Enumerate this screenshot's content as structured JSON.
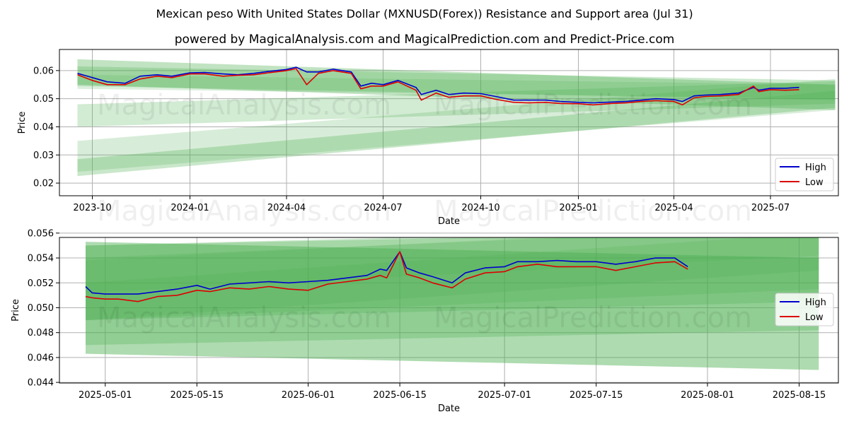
{
  "title": "Mexican peso With United States Dollar (MXNUSD(Forex)) Resistance and Support area (Jul 31)",
  "subtitle": "powered by MagicalAnalysis.com and MagicalPrediction.com and Predict-Price.com",
  "watermarks": [
    "MagicalAnalysis.com",
    "MagicalPrediction.com"
  ],
  "colors": {
    "high": "#0000cc",
    "low": "#dd0000",
    "band": "#4caf50",
    "grid": "#b0b0b0"
  },
  "chart_data": [
    {
      "type": "line",
      "xlabel": "Date",
      "ylabel": "Price",
      "xlim": [
        "2023-08-31",
        "2025-09-03"
      ],
      "ylim": [
        0.0155,
        0.0675
      ],
      "x_ticks": [
        "2023-10",
        "2024-01",
        "2024-04",
        "2024-07",
        "2024-10",
        "2025-01",
        "2025-04",
        "2025-07"
      ],
      "x_tick_dates": [
        "2023-10-01",
        "2024-01-01",
        "2024-04-01",
        "2024-07-01",
        "2024-10-01",
        "2025-01-01",
        "2025-04-01",
        "2025-07-01"
      ],
      "y_ticks": [
        0.02,
        0.03,
        0.04,
        0.05,
        0.06
      ],
      "grid": true,
      "legend": "bottom-right",
      "bands_x": [
        "2023-09-17",
        "2025-08-31"
      ],
      "bands": [
        {
          "y": [
            0.0295,
            0.0515
          ],
          "hw": 0.0055,
          "opacity": 0.22
        },
        {
          "y": [
            0.0255,
            0.0498
          ],
          "hw": 0.003,
          "opacity": 0.3
        },
        {
          "y": [
            0.044,
            0.0522
          ],
          "hw": 0.004,
          "opacity": 0.25
        },
        {
          "y": [
            0.0595,
            0.0505
          ],
          "hw": 0.0045,
          "opacity": 0.35
        },
        {
          "y": [
            0.058,
            0.053
          ],
          "hw": 0.0035,
          "opacity": 0.28
        },
        {
          "y": [
            0.056,
            0.0525
          ],
          "hw": 0.0025,
          "opacity": 0.2
        }
      ],
      "series": [
        {
          "name": "High",
          "x": [
            "2023-09-17",
            "2023-10-01",
            "2023-10-15",
            "2023-11-01",
            "2023-11-15",
            "2023-12-01",
            "2023-12-15",
            "2024-01-01",
            "2024-01-15",
            "2024-02-01",
            "2024-02-15",
            "2024-03-01",
            "2024-03-15",
            "2024-04-01",
            "2024-04-10",
            "2024-04-20",
            "2024-05-01",
            "2024-05-15",
            "2024-06-01",
            "2024-06-10",
            "2024-06-20",
            "2024-07-01",
            "2024-07-15",
            "2024-08-01",
            "2024-08-06",
            "2024-08-20",
            "2024-09-01",
            "2024-09-15",
            "2024-10-01",
            "2024-10-15",
            "2024-11-01",
            "2024-11-15",
            "2024-12-01",
            "2024-12-15",
            "2025-01-01",
            "2025-01-15",
            "2025-02-01",
            "2025-02-15",
            "2025-03-01",
            "2025-03-15",
            "2025-04-01",
            "2025-04-09",
            "2025-04-20",
            "2025-05-01",
            "2025-05-15",
            "2025-06-01",
            "2025-06-15",
            "2025-06-20",
            "2025-07-01",
            "2025-07-15",
            "2025-07-28"
          ],
          "values": [
            0.059,
            0.0575,
            0.056,
            0.0555,
            0.058,
            0.0585,
            0.058,
            0.0592,
            0.0593,
            0.0588,
            0.0585,
            0.059,
            0.0597,
            0.0604,
            0.0612,
            0.0595,
            0.0595,
            0.0605,
            0.0595,
            0.0545,
            0.0555,
            0.055,
            0.0565,
            0.054,
            0.0515,
            0.053,
            0.0515,
            0.052,
            0.0518,
            0.0508,
            0.0495,
            0.0495,
            0.0495,
            0.049,
            0.0487,
            0.0485,
            0.0488,
            0.049,
            0.0495,
            0.05,
            0.0497,
            0.049,
            0.051,
            0.0513,
            0.0515,
            0.052,
            0.054,
            0.053,
            0.0537,
            0.0537,
            0.054
          ]
        },
        {
          "name": "Low",
          "x": [
            "2023-09-17",
            "2023-10-01",
            "2023-10-15",
            "2023-11-01",
            "2023-11-15",
            "2023-12-01",
            "2023-12-15",
            "2024-01-01",
            "2024-01-15",
            "2024-02-01",
            "2024-02-15",
            "2024-03-01",
            "2024-03-15",
            "2024-04-01",
            "2024-04-10",
            "2024-04-20",
            "2024-05-01",
            "2024-05-15",
            "2024-06-01",
            "2024-06-10",
            "2024-06-20",
            "2024-07-01",
            "2024-07-15",
            "2024-08-01",
            "2024-08-06",
            "2024-08-20",
            "2024-09-01",
            "2024-09-15",
            "2024-10-01",
            "2024-10-15",
            "2024-11-01",
            "2024-11-15",
            "2024-12-01",
            "2024-12-15",
            "2025-01-01",
            "2025-01-15",
            "2025-02-01",
            "2025-02-15",
            "2025-03-01",
            "2025-03-15",
            "2025-04-01",
            "2025-04-09",
            "2025-04-20",
            "2025-05-01",
            "2025-05-15",
            "2025-06-01",
            "2025-06-15",
            "2025-06-20",
            "2025-07-01",
            "2025-07-15",
            "2025-07-28"
          ],
          "values": [
            0.0585,
            0.0565,
            0.055,
            0.055,
            0.057,
            0.058,
            0.0575,
            0.0588,
            0.0588,
            0.058,
            0.0583,
            0.0585,
            0.0592,
            0.06,
            0.0607,
            0.055,
            0.059,
            0.06,
            0.059,
            0.0535,
            0.0545,
            0.0545,
            0.056,
            0.053,
            0.0495,
            0.052,
            0.0505,
            0.051,
            0.051,
            0.0498,
            0.0487,
            0.0485,
            0.0487,
            0.0483,
            0.0482,
            0.0478,
            0.0483,
            0.0485,
            0.049,
            0.0493,
            0.049,
            0.0478,
            0.0503,
            0.0508,
            0.051,
            0.0515,
            0.0545,
            0.0525,
            0.0532,
            0.053,
            0.0532
          ]
        }
      ]
    },
    {
      "type": "line",
      "xlabel": "Date",
      "ylabel": "Price",
      "xlim": [
        "2025-04-24",
        "2025-08-21"
      ],
      "ylim": [
        0.04395,
        0.05565
      ],
      "x_ticks": [
        "2025-05-01",
        "2025-05-15",
        "2025-06-01",
        "2025-06-15",
        "2025-07-01",
        "2025-07-15",
        "2025-08-01",
        "2025-08-15"
      ],
      "x_tick_dates": [
        "2025-05-01",
        "2025-05-15",
        "2025-06-01",
        "2025-06-15",
        "2025-07-01",
        "2025-07-15",
        "2025-08-01",
        "2025-08-15"
      ],
      "y_ticks": [
        0.044,
        0.046,
        0.048,
        0.05,
        0.052,
        0.054,
        0.056
      ],
      "grid": true,
      "legend": "center-right",
      "bands_x": [
        "2025-04-28",
        "2025-08-18"
      ],
      "bands": [
        {
          "y": [
            0.0508,
            0.0495
          ],
          "hw": 0.0045,
          "opacity": 0.45
        },
        {
          "y": [
            0.051,
            0.0522
          ],
          "hw": 0.004,
          "opacity": 0.3
        },
        {
          "y": [
            0.052,
            0.0535
          ],
          "hw": 0.003,
          "opacity": 0.28
        },
        {
          "y": [
            0.0515,
            0.054
          ],
          "hw": 0.0025,
          "opacity": 0.22
        },
        {
          "y": [
            0.0505,
            0.0545
          ],
          "hw": 0.0015,
          "opacity": 0.2
        },
        {
          "y": [
            0.0525,
            0.0555
          ],
          "hw": 0.0013,
          "opacity": 0.18
        }
      ],
      "series": [
        {
          "name": "High",
          "x": [
            "2025-04-28",
            "2025-04-29",
            "2025-05-01",
            "2025-05-03",
            "2025-05-06",
            "2025-05-09",
            "2025-05-12",
            "2025-05-15",
            "2025-05-17",
            "2025-05-20",
            "2025-05-23",
            "2025-05-26",
            "2025-05-29",
            "2025-06-01",
            "2025-06-04",
            "2025-06-07",
            "2025-06-10",
            "2025-06-12",
            "2025-06-13",
            "2025-06-15",
            "2025-06-16",
            "2025-06-18",
            "2025-06-20",
            "2025-06-23",
            "2025-06-25",
            "2025-06-28",
            "2025-07-01",
            "2025-07-03",
            "2025-07-06",
            "2025-07-09",
            "2025-07-12",
            "2025-07-15",
            "2025-07-18",
            "2025-07-21",
            "2025-07-24",
            "2025-07-27",
            "2025-07-29"
          ],
          "values": [
            0.0517,
            0.0512,
            0.0511,
            0.0511,
            0.0511,
            0.0513,
            0.0515,
            0.0518,
            0.0515,
            0.0519,
            0.052,
            0.0521,
            0.052,
            0.0521,
            0.0522,
            0.0524,
            0.0526,
            0.0531,
            0.053,
            0.0545,
            0.0532,
            0.0528,
            0.0525,
            0.052,
            0.0528,
            0.0532,
            0.0533,
            0.0537,
            0.0537,
            0.0538,
            0.0537,
            0.0537,
            0.0535,
            0.0537,
            0.054,
            0.054,
            0.0533
          ]
        },
        {
          "name": "Low",
          "x": [
            "2025-04-28",
            "2025-04-29",
            "2025-05-01",
            "2025-05-03",
            "2025-05-06",
            "2025-05-09",
            "2025-05-12",
            "2025-05-15",
            "2025-05-17",
            "2025-05-20",
            "2025-05-23",
            "2025-05-26",
            "2025-05-29",
            "2025-06-01",
            "2025-06-04",
            "2025-06-07",
            "2025-06-10",
            "2025-06-12",
            "2025-06-13",
            "2025-06-15",
            "2025-06-16",
            "2025-06-18",
            "2025-06-20",
            "2025-06-23",
            "2025-06-25",
            "2025-06-28",
            "2025-07-01",
            "2025-07-03",
            "2025-07-06",
            "2025-07-09",
            "2025-07-12",
            "2025-07-15",
            "2025-07-18",
            "2025-07-21",
            "2025-07-24",
            "2025-07-27",
            "2025-07-29"
          ],
          "values": [
            0.0509,
            0.0508,
            0.0507,
            0.0507,
            0.0505,
            0.0509,
            0.051,
            0.0514,
            0.0513,
            0.0516,
            0.0515,
            0.0517,
            0.0515,
            0.0514,
            0.0519,
            0.0521,
            0.0523,
            0.0526,
            0.0524,
            0.0545,
            0.0527,
            0.0524,
            0.052,
            0.0516,
            0.0523,
            0.0528,
            0.0529,
            0.0533,
            0.0535,
            0.0533,
            0.0533,
            0.0533,
            0.053,
            0.0533,
            0.0536,
            0.0537,
            0.0531
          ]
        }
      ]
    }
  ]
}
